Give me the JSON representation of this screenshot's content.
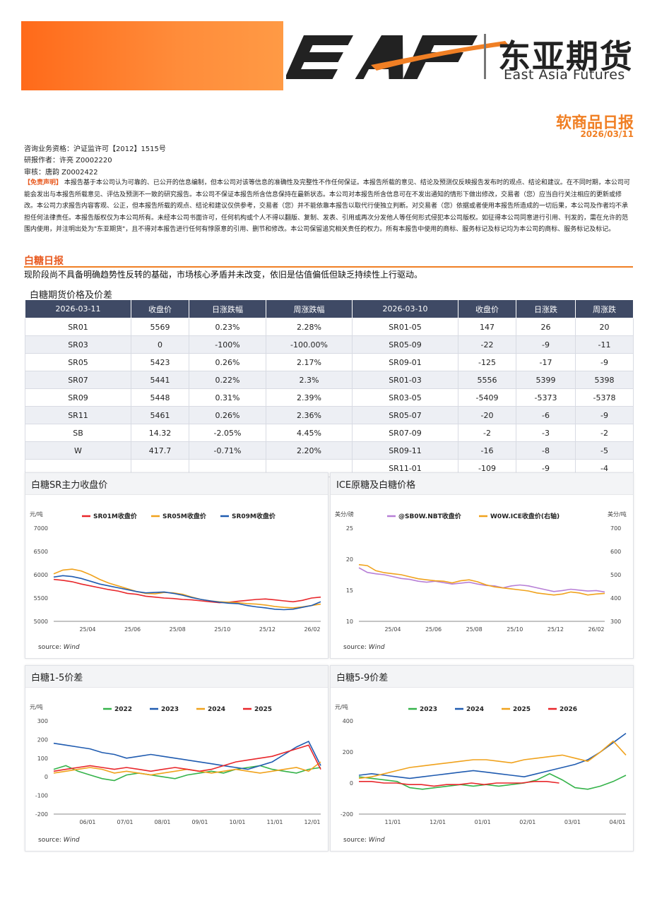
{
  "header": {
    "logo_text": "EAF",
    "company_cn": "东亚期货",
    "company_en": "East Asia Futures",
    "report_title": "软商品日报",
    "report_date": "2026/03/11"
  },
  "meta": {
    "license": "咨询业务资格：沪证监许可【2012】1515号",
    "author": "研报作者：许亮 Z0002220",
    "reviewer": "审核：唐韵 Z0002422"
  },
  "disclaimer": {
    "tag": "【免责声明】",
    "text": "本报告基于本公司认为可靠的、已公开的信息编制，但本公司对该等信息的准确性及完整性不作任何保证。本报告所载的意见、结论及预测仅反映报告发布时的观点、结论和建议。在不同时期，本公司可能会发出与本报告所载意见、评估及预测不一致的研究报告。本公司不保证本报告所含信息保持在最新状态。本公司对本报告所含信息可在不发出通知的情形下做出修改，交易者（您）应当自行关注相应的更新或修改。本公司力求报告内容客观、公正，但本报告所载的观点、结论和建议仅供参考，交易者（您）并不能依靠本报告以取代行使独立判断。对交易者（您）依据或者使用本报告所造成的一切后果，本公司及作者均不承担任何法律责任。本报告版权仅为本公司所有。未经本公司书面许可，任何机构或个人不得以翻版、复制、发表、引用或再次分发他人等任何形式侵犯本公司版权。如征得本公司同意进行引用、刊发的，需在允许的范围内使用，并注明出处为\"东亚期货\"，且不得对本报告进行任何有悖原意的引用、删节和修改。本公司保留追究相关责任的权力。所有本报告中使用的商标、服务标记及标记均为本公司的商标、服务标记及标记。"
  },
  "section": {
    "title": "白糖日报",
    "summary": "现阶段尚不具备明确趋势性反转的基础，市场核心矛盾并未改变，依旧是估值偏低但缺乏持续性上行驱动。",
    "table_caption": "白糖期货价格及价差"
  },
  "table": {
    "headers": [
      "2026-03-11",
      "收盘价",
      "日涨跌幅",
      "周涨跌幅",
      "2026-03-10",
      "收盘价",
      "日涨跌",
      "周涨跌"
    ],
    "rows": [
      [
        "SR01",
        "5569",
        "0.23%",
        "2.28%",
        "SR01-05",
        "147",
        "26",
        "20"
      ],
      [
        "SR03",
        "0",
        "-100%",
        "-100.00%",
        "SR05-09",
        "-22",
        "-9",
        "-11"
      ],
      [
        "SR05",
        "5423",
        "0.26%",
        "2.17%",
        "SR09-01",
        "-125",
        "-17",
        "-9"
      ],
      [
        "SR07",
        "5441",
        "0.22%",
        "2.3%",
        "SR01-03",
        "5556",
        "5399",
        "5398"
      ],
      [
        "SR09",
        "5448",
        "0.31%",
        "2.39%",
        "SR03-05",
        "-5409",
        "-5373",
        "-5378"
      ],
      [
        "SR11",
        "5461",
        "0.26%",
        "2.36%",
        "SR05-07",
        "-20",
        "-6",
        "-9"
      ],
      [
        "SB",
        "14.32",
        "-2.05%",
        "4.45%",
        "SR07-09",
        "-2",
        "-3",
        "-2"
      ],
      [
        "W",
        "417.7",
        "-0.71%",
        "2.20%",
        "SR09-11",
        "-16",
        "-8",
        "-5"
      ],
      [
        "",
        "",
        "",
        "",
        "SR11-01",
        "-109",
        "-9",
        "-4"
      ]
    ]
  },
  "colors": {
    "accent": "#f07f24",
    "header_bg": "#3f4a65",
    "red": "#e8262a",
    "orange": "#f0a21c",
    "blue": "#1f5bb0",
    "green": "#35b34a",
    "purple": "#b77fd6"
  },
  "chart_data": [
    {
      "id": "sr-main-close",
      "panel_title": "白糖SR主力收盘价",
      "type": "line",
      "ylabel": "元/吨",
      "ylim": [
        5000,
        7000
      ],
      "yticks": [
        "7000",
        "6500",
        "6000",
        "5500",
        "5000"
      ],
      "xticks": [
        "25/04",
        "25/06",
        "25/08",
        "25/10",
        "25/12",
        "26/02"
      ],
      "source_label": "source:",
      "source_name": "Wind",
      "series": [
        {
          "name": "SR01M收盘价",
          "color": "#e8262a",
          "values": [
            5900,
            5880,
            5850,
            5800,
            5760,
            5720,
            5680,
            5650,
            5600,
            5580,
            5540,
            5520,
            5500,
            5490,
            5470,
            5460,
            5440,
            5420,
            5400,
            5410,
            5430,
            5450,
            5470,
            5480,
            5460,
            5440,
            5420,
            5450,
            5500,
            5520
          ]
        },
        {
          "name": "SR05M收盘价",
          "color": "#f0a21c",
          "values": [
            6020,
            6100,
            6120,
            6080,
            6000,
            5900,
            5820,
            5760,
            5700,
            5640,
            5600,
            5590,
            5620,
            5610,
            5580,
            5520,
            5470,
            5440,
            5420,
            5410,
            5400,
            5380,
            5370,
            5350,
            5320,
            5300,
            5290,
            5310,
            5340,
            5370
          ]
        },
        {
          "name": "SR09M收盘价",
          "color": "#1f5bb0",
          "values": [
            5950,
            5980,
            5960,
            5920,
            5860,
            5800,
            5760,
            5720,
            5680,
            5640,
            5610,
            5620,
            5630,
            5600,
            5560,
            5510,
            5470,
            5440,
            5410,
            5390,
            5380,
            5340,
            5310,
            5290,
            5260,
            5250,
            5260,
            5300,
            5340,
            5420
          ]
        }
      ]
    },
    {
      "id": "ice-raw-white",
      "panel_title": "ICE原糖及白糖价格",
      "type": "line",
      "ylabel": "美分/磅",
      "ylabel_right": "美分/吨",
      "ylim": [
        8,
        28
      ],
      "ylim_right": [
        280,
        740
      ],
      "yticks": [
        "25",
        "20",
        "15",
        "10"
      ],
      "yticks_right": [
        "700",
        "600",
        "500",
        "400",
        "300"
      ],
      "xticks": [
        "25/04",
        "25/06",
        "25/08",
        "25/10",
        "25/12",
        "26/02"
      ],
      "source_label": "source:",
      "source_name": "Wind",
      "series": [
        {
          "name": "@SB0W.NBT收盘价",
          "color": "#b77fd6",
          "axis": "left",
          "values": [
            19.5,
            18.5,
            18.2,
            18.0,
            17.6,
            17.2,
            17.0,
            16.6,
            16.4,
            16.6,
            16.3,
            16.0,
            16.2,
            16.4,
            16.0,
            15.7,
            15.6,
            15.2,
            15.6,
            15.8,
            15.6,
            15.2,
            14.8,
            14.4,
            14.6,
            14.9,
            14.7,
            14.5,
            14.6,
            14.3
          ]
        },
        {
          "name": "W0W.ICE收盘价(右轴)",
          "color": "#f0a21c",
          "axis": "right",
          "values": [
            560,
            555,
            530,
            520,
            515,
            510,
            500,
            490,
            485,
            480,
            478,
            470,
            480,
            485,
            475,
            460,
            450,
            445,
            440,
            435,
            430,
            420,
            415,
            410,
            415,
            425,
            420,
            410,
            415,
            418
          ]
        }
      ]
    },
    {
      "id": "sr-spread-1-5",
      "panel_title": "白糖1-5价差",
      "type": "line",
      "ylabel": "元/吨",
      "ylim": [
        -200,
        300
      ],
      "yticks": [
        "300",
        "200",
        "100",
        "0",
        "-100",
        "-200"
      ],
      "xticks": [
        "06/01",
        "07/01",
        "08/01",
        "09/01",
        "10/01",
        "11/01",
        "12/01"
      ],
      "source_label": "source:",
      "source_name": "Wind",
      "series": [
        {
          "name": "2022",
          "color": "#35b34a",
          "values": [
            40,
            60,
            30,
            10,
            -10,
            -20,
            10,
            20,
            10,
            0,
            -10,
            10,
            20,
            30,
            20,
            40,
            50,
            60,
            40,
            30,
            20,
            40,
            50
          ]
        },
        {
          "name": "2023",
          "color": "#1f5bb0",
          "values": [
            180,
            170,
            160,
            150,
            130,
            120,
            100,
            110,
            120,
            110,
            100,
            90,
            80,
            70,
            60,
            50,
            40,
            60,
            80,
            120,
            160,
            190,
            60
          ]
        },
        {
          "name": "2024",
          "color": "#f0a21c",
          "values": [
            20,
            30,
            40,
            50,
            40,
            20,
            30,
            20,
            10,
            20,
            30,
            40,
            30,
            20,
            30,
            40,
            30,
            20,
            30,
            40,
            50,
            30,
            80
          ]
        },
        {
          "name": "2025",
          "color": "#e8262a",
          "values": [
            30,
            40,
            50,
            60,
            50,
            40,
            50,
            40,
            30,
            40,
            50,
            40,
            30,
            40,
            60,
            80,
            90,
            100,
            110,
            130,
            150,
            170,
            40
          ]
        }
      ]
    },
    {
      "id": "sr-spread-5-9",
      "panel_title": "白糖5-9价差",
      "type": "line",
      "ylabel": "元/吨",
      "ylim": [
        -200,
        400
      ],
      "yticks": [
        "400",
        "200",
        "0",
        "-200"
      ],
      "xticks": [
        "11/01",
        "12/01",
        "01/01",
        "02/01",
        "03/01",
        "04/01"
      ],
      "source_label": "source:",
      "source_name": "Wind",
      "series": [
        {
          "name": "2023",
          "color": "#35b34a",
          "values": [
            40,
            30,
            20,
            10,
            -30,
            -40,
            -30,
            -20,
            -10,
            -20,
            -10,
            -20,
            -10,
            0,
            20,
            60,
            20,
            -30,
            -40,
            -20,
            10,
            50
          ]
        },
        {
          "name": "2024",
          "color": "#1f5bb0",
          "values": [
            50,
            60,
            50,
            40,
            30,
            40,
            50,
            60,
            70,
            80,
            70,
            60,
            50,
            40,
            60,
            80,
            100,
            120,
            150,
            200,
            260,
            320
          ]
        },
        {
          "name": "2025",
          "color": "#f0a21c",
          "values": [
            30,
            40,
            60,
            80,
            100,
            110,
            120,
            130,
            140,
            150,
            150,
            140,
            130,
            150,
            160,
            170,
            180,
            160,
            140,
            200,
            270,
            180
          ]
        },
        {
          "name": "2026",
          "color": "#e8262a",
          "values": [
            10,
            10,
            0,
            0,
            -10,
            -10,
            -20,
            -10,
            -10,
            0,
            -10,
            0,
            0,
            0,
            10,
            10,
            0
          ]
        }
      ]
    }
  ]
}
